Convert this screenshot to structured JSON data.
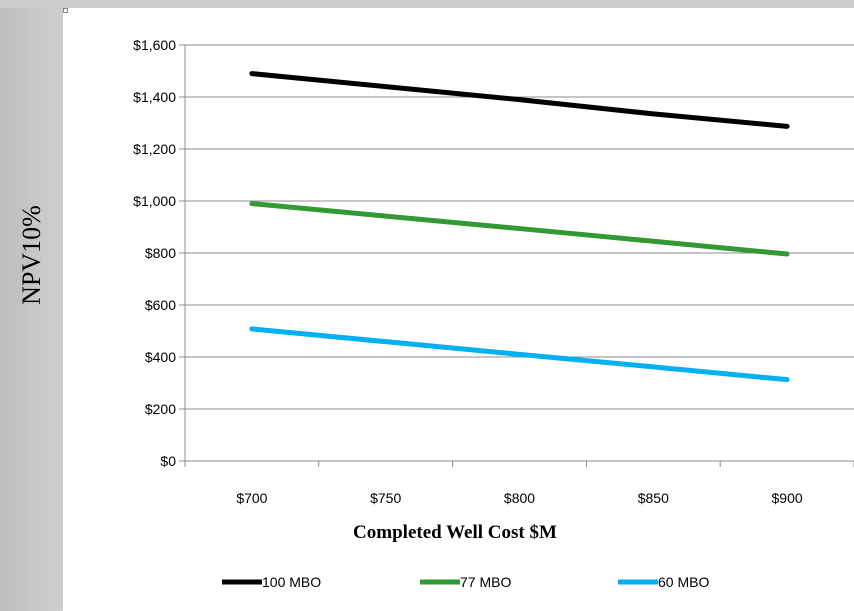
{
  "chart_data": {
    "type": "line",
    "x": [
      700,
      750,
      800,
      850,
      900
    ],
    "x_tick_labels": [
      "$700",
      "$750",
      "$800",
      "$850",
      "$900"
    ],
    "y_tick_labels": [
      "$0",
      "$200",
      "$400",
      "$600",
      "$800",
      "$1,000",
      "$1,200",
      "$1,400",
      "$1,600"
    ],
    "y_ticks": [
      0,
      200,
      400,
      600,
      800,
      1000,
      1200,
      1400,
      1600
    ],
    "ylim": [
      0,
      1600
    ],
    "xlim": [
      675,
      925
    ],
    "xlabel": "Completed Well Cost $M",
    "ylabel": "NPV10%",
    "grid": "horizontal",
    "legend_position": "bottom",
    "series": [
      {
        "name": "100 MBO",
        "color": "#000000",
        "values": [
          1490,
          1440,
          1390,
          1335,
          1287
        ]
      },
      {
        "name": "77 MBO",
        "color": "#339933",
        "values": [
          990,
          942,
          894,
          845,
          796
        ]
      },
      {
        "name": "60 MBO",
        "color": "#00b0f0",
        "values": [
          508,
          459,
          410,
          362,
          313
        ]
      }
    ]
  }
}
